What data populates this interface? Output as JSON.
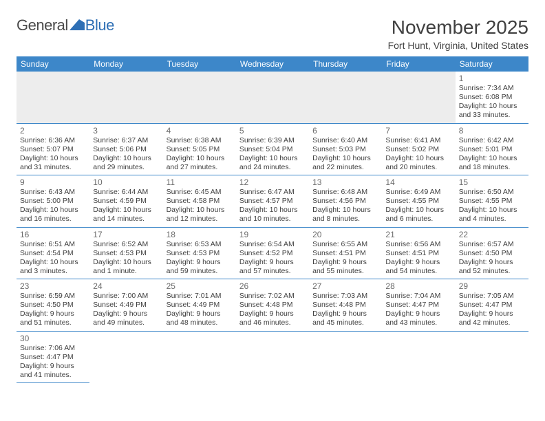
{
  "logo": {
    "text_left": "General",
    "text_right": "Blue"
  },
  "title": "November 2025",
  "location": "Fort Hunt, Virginia, United States",
  "colors": {
    "header_bg": "#3d87c9",
    "header_fg": "#ffffff",
    "rule": "#3d87c9",
    "text": "#404040",
    "daynum": "#6b6b6b",
    "firstrow_bg": "#ededed",
    "logo_accent": "#2e6fb5"
  },
  "weekdays": [
    "Sunday",
    "Monday",
    "Tuesday",
    "Wednesday",
    "Thursday",
    "Friday",
    "Saturday"
  ],
  "weeks": [
    [
      null,
      null,
      null,
      null,
      null,
      null,
      {
        "n": "1",
        "sr": "7:34 AM",
        "ss": "6:08 PM",
        "dl": "10 hours and 33 minutes."
      }
    ],
    [
      {
        "n": "2",
        "sr": "6:36 AM",
        "ss": "5:07 PM",
        "dl": "10 hours and 31 minutes."
      },
      {
        "n": "3",
        "sr": "6:37 AM",
        "ss": "5:06 PM",
        "dl": "10 hours and 29 minutes."
      },
      {
        "n": "4",
        "sr": "6:38 AM",
        "ss": "5:05 PM",
        "dl": "10 hours and 27 minutes."
      },
      {
        "n": "5",
        "sr": "6:39 AM",
        "ss": "5:04 PM",
        "dl": "10 hours and 24 minutes."
      },
      {
        "n": "6",
        "sr": "6:40 AM",
        "ss": "5:03 PM",
        "dl": "10 hours and 22 minutes."
      },
      {
        "n": "7",
        "sr": "6:41 AM",
        "ss": "5:02 PM",
        "dl": "10 hours and 20 minutes."
      },
      {
        "n": "8",
        "sr": "6:42 AM",
        "ss": "5:01 PM",
        "dl": "10 hours and 18 minutes."
      }
    ],
    [
      {
        "n": "9",
        "sr": "6:43 AM",
        "ss": "5:00 PM",
        "dl": "10 hours and 16 minutes."
      },
      {
        "n": "10",
        "sr": "6:44 AM",
        "ss": "4:59 PM",
        "dl": "10 hours and 14 minutes."
      },
      {
        "n": "11",
        "sr": "6:45 AM",
        "ss": "4:58 PM",
        "dl": "10 hours and 12 minutes."
      },
      {
        "n": "12",
        "sr": "6:47 AM",
        "ss": "4:57 PM",
        "dl": "10 hours and 10 minutes."
      },
      {
        "n": "13",
        "sr": "6:48 AM",
        "ss": "4:56 PM",
        "dl": "10 hours and 8 minutes."
      },
      {
        "n": "14",
        "sr": "6:49 AM",
        "ss": "4:55 PM",
        "dl": "10 hours and 6 minutes."
      },
      {
        "n": "15",
        "sr": "6:50 AM",
        "ss": "4:55 PM",
        "dl": "10 hours and 4 minutes."
      }
    ],
    [
      {
        "n": "16",
        "sr": "6:51 AM",
        "ss": "4:54 PM",
        "dl": "10 hours and 3 minutes."
      },
      {
        "n": "17",
        "sr": "6:52 AM",
        "ss": "4:53 PM",
        "dl": "10 hours and 1 minute."
      },
      {
        "n": "18",
        "sr": "6:53 AM",
        "ss": "4:53 PM",
        "dl": "9 hours and 59 minutes."
      },
      {
        "n": "19",
        "sr": "6:54 AM",
        "ss": "4:52 PM",
        "dl": "9 hours and 57 minutes."
      },
      {
        "n": "20",
        "sr": "6:55 AM",
        "ss": "4:51 PM",
        "dl": "9 hours and 55 minutes."
      },
      {
        "n": "21",
        "sr": "6:56 AM",
        "ss": "4:51 PM",
        "dl": "9 hours and 54 minutes."
      },
      {
        "n": "22",
        "sr": "6:57 AM",
        "ss": "4:50 PM",
        "dl": "9 hours and 52 minutes."
      }
    ],
    [
      {
        "n": "23",
        "sr": "6:59 AM",
        "ss": "4:50 PM",
        "dl": "9 hours and 51 minutes."
      },
      {
        "n": "24",
        "sr": "7:00 AM",
        "ss": "4:49 PM",
        "dl": "9 hours and 49 minutes."
      },
      {
        "n": "25",
        "sr": "7:01 AM",
        "ss": "4:49 PM",
        "dl": "9 hours and 48 minutes."
      },
      {
        "n": "26",
        "sr": "7:02 AM",
        "ss": "4:48 PM",
        "dl": "9 hours and 46 minutes."
      },
      {
        "n": "27",
        "sr": "7:03 AM",
        "ss": "4:48 PM",
        "dl": "9 hours and 45 minutes."
      },
      {
        "n": "28",
        "sr": "7:04 AM",
        "ss": "4:47 PM",
        "dl": "9 hours and 43 minutes."
      },
      {
        "n": "29",
        "sr": "7:05 AM",
        "ss": "4:47 PM",
        "dl": "9 hours and 42 minutes."
      }
    ],
    [
      {
        "n": "30",
        "sr": "7:06 AM",
        "ss": "4:47 PM",
        "dl": "9 hours and 41 minutes."
      },
      null,
      null,
      null,
      null,
      null,
      null
    ]
  ],
  "labels": {
    "sunrise": "Sunrise: ",
    "sunset": "Sunset: ",
    "daylight": "Daylight: "
  }
}
